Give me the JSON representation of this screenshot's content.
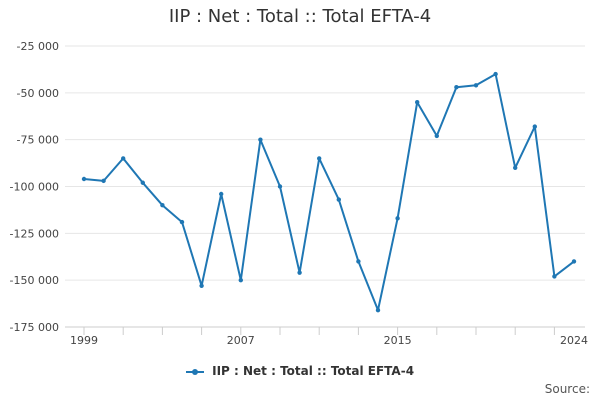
{
  "title": "IIP : Net : Total :: Total EFTA-4",
  "legend_label": "IIP : Net : Total :: Total EFTA-4",
  "source_label": "Source:",
  "colors": {
    "series": "#1f77b4",
    "grid": "#e6e6e6",
    "axis": "#cccccc"
  },
  "chart_data": {
    "type": "line",
    "title": "IIP : Net : Total :: Total EFTA-4",
    "xlabel": "",
    "ylabel": "",
    "ylim": [
      -175000,
      -25000
    ],
    "yticks": [
      -25000,
      -50000,
      -75000,
      -100000,
      -125000,
      -150000,
      -175000
    ],
    "ytick_labels": [
      "-25 000",
      "-50 000",
      "-75 000",
      "-100 000",
      "-125 000",
      "-150 000",
      "-175 000"
    ],
    "xlim": [
      1999,
      2024
    ],
    "xtick_labels": [
      "1999",
      "2007",
      "2015",
      "2024"
    ],
    "grid": true,
    "legend": "bottom",
    "series": [
      {
        "name": "IIP : Net : Total :: Total EFTA-4",
        "x": [
          1999,
          2000,
          2001,
          2002,
          2003,
          2004,
          2005,
          2006,
          2007,
          2008,
          2009,
          2010,
          2011,
          2012,
          2013,
          2014,
          2015,
          2016,
          2017,
          2018,
          2019,
          2020,
          2021,
          2022,
          2023,
          2024
        ],
        "y": [
          -96000,
          -97000,
          -85000,
          -98000,
          -110000,
          -119000,
          -153000,
          -104000,
          -150000,
          -75000,
          -100000,
          -146000,
          -85000,
          -107000,
          -140000,
          -166000,
          -117000,
          -55000,
          -73000,
          -47000,
          -46000,
          -40000,
          -90000,
          -68000,
          -148000,
          -140000
        ]
      }
    ]
  }
}
